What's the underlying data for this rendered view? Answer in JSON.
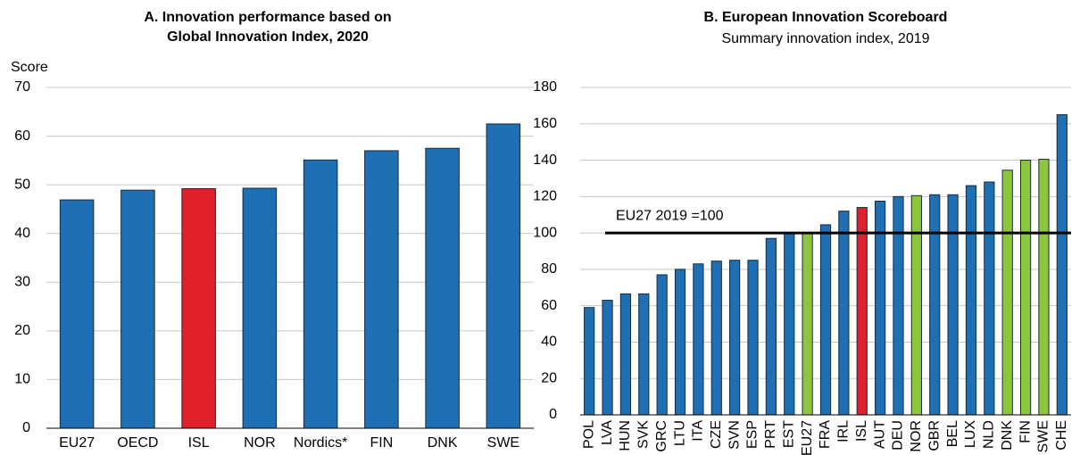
{
  "chart_data": [
    {
      "type": "bar",
      "title": [
        "A. Innovation performance based on",
        "Global Innovation Index, 2020"
      ],
      "y_label": "Score",
      "categories": [
        "EU27",
        "OECD",
        "ISL",
        "NOR",
        "Nordics*",
        "FIN",
        "DNK",
        "SWE"
      ],
      "values": [
        46.9,
        48.9,
        49.2,
        49.3,
        55.1,
        57.0,
        57.5,
        62.5
      ],
      "colors": [
        "#1f6fb5",
        "#1f6fb5",
        "#e0202a",
        "#1f6fb5",
        "#1f6fb5",
        "#1f6fb5",
        "#1f6fb5",
        "#1f6fb5"
      ],
      "ylim": [
        0,
        70
      ],
      "yticks": [
        0,
        10,
        20,
        30,
        40,
        50,
        60,
        70
      ],
      "grid": true
    },
    {
      "type": "bar",
      "title": [
        "B. European Innovation Scoreboard"
      ],
      "subtitle": "Summary innovation index, 2019",
      "categories": [
        "POL",
        "LVA",
        "HUN",
        "SVK",
        "GRC",
        "LTU",
        "ITA",
        "CZE",
        "SVN",
        "ESP",
        "PRT",
        "EST",
        "EU27",
        "FRA",
        "IRL",
        "ISL",
        "AUT",
        "DEU",
        "NOR",
        "GBR",
        "BEL",
        "LUX",
        "NLD",
        "DNK",
        "FIN",
        "SWE",
        "CHE"
      ],
      "values": [
        59,
        63,
        66.5,
        66.5,
        77,
        80,
        83,
        84.5,
        85,
        85,
        97,
        100,
        100,
        104.5,
        112,
        114,
        117.5,
        120,
        120.5,
        121,
        121,
        126,
        128,
        134.5,
        140,
        140.5,
        165
      ],
      "colors": [
        "#1f6fb5",
        "#1f6fb5",
        "#1f6fb5",
        "#1f6fb5",
        "#1f6fb5",
        "#1f6fb5",
        "#1f6fb5",
        "#1f6fb5",
        "#1f6fb5",
        "#1f6fb5",
        "#1f6fb5",
        "#1f6fb5",
        "#8cc63e",
        "#1f6fb5",
        "#1f6fb5",
        "#e0202a",
        "#1f6fb5",
        "#1f6fb5",
        "#8cc63e",
        "#1f6fb5",
        "#1f6fb5",
        "#1f6fb5",
        "#1f6fb5",
        "#8cc63e",
        "#8cc63e",
        "#8cc63e",
        "#1f6fb5"
      ],
      "reference_line": {
        "value": 100,
        "label": "EU27 2019 =100"
      },
      "ylim": [
        0,
        180
      ],
      "yticks": [
        0,
        20,
        40,
        60,
        80,
        100,
        120,
        140,
        160,
        180
      ],
      "grid": true
    }
  ]
}
